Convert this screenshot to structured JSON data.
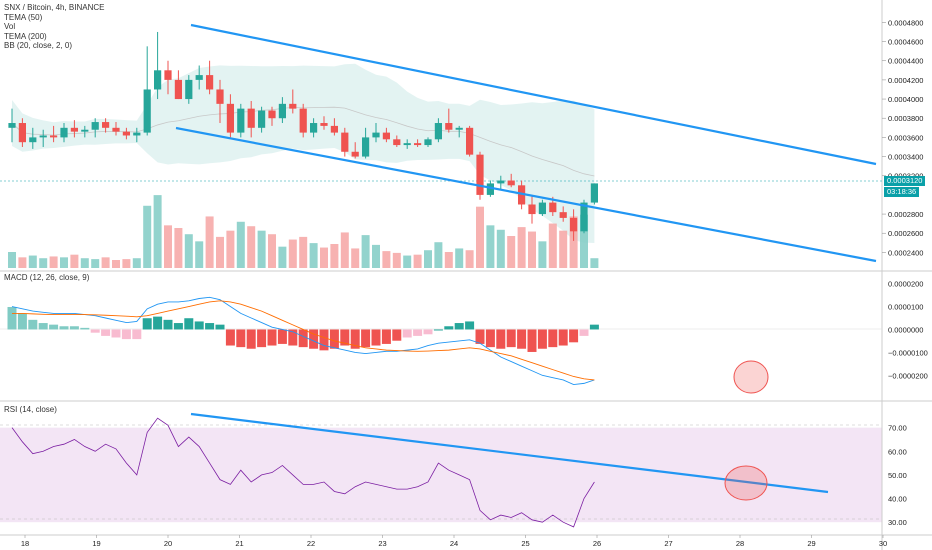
{
  "legend": {
    "symbol": "SNX / Bitcoin, 4h, BINANCE",
    "indicators": [
      "TEMA (50)",
      "Vol",
      "TEMA (200)",
      "BB (20, close, 2, 0)"
    ],
    "macd": "MACD (12, 26, close, 9)",
    "rsi": "RSI (14, close)"
  },
  "price_axis": [
    "0.0004800",
    "0.0004600",
    "0.0004400",
    "0.0004200",
    "0.0004000",
    "0.0003800",
    "0.0003600",
    "0.0003400",
    "0.0003200",
    "0.0002800",
    "0.0002600",
    "0.0002400"
  ],
  "current_price": "0.0003120",
  "countdown": "03:18:36",
  "macd_axis": [
    "0.0000200",
    "0.0000100",
    "0.0000000",
    "−0.0000100",
    "−0.0000200"
  ],
  "rsi_axis": [
    "70.00",
    "60.00",
    "50.00",
    "40.00",
    "30.00"
  ],
  "time_axis": [
    "18",
    "19",
    "20",
    "21",
    "22",
    "23",
    "24",
    "25",
    "26",
    "27",
    "28",
    "29",
    "30"
  ],
  "colors": {
    "up": "#26a69a",
    "down": "#ef5350",
    "trendline": "#2196f3",
    "bb_fill": "#e0f2f1",
    "rsi_band": "#f3e5f5",
    "macd_line": "#2196f3",
    "signal_line": "#ff6d00"
  },
  "chart_data": {
    "type": "candlestick",
    "candles": [
      {
        "o": 3.7,
        "h": 3.9,
        "l": 3.55,
        "c": 3.75
      },
      {
        "o": 3.75,
        "h": 3.8,
        "l": 3.5,
        "c": 3.55
      },
      {
        "o": 3.55,
        "h": 3.7,
        "l": 3.48,
        "c": 3.6
      },
      {
        "o": 3.6,
        "h": 3.68,
        "l": 3.5,
        "c": 3.62
      },
      {
        "o": 3.62,
        "h": 3.72,
        "l": 3.55,
        "c": 3.6
      },
      {
        "o": 3.6,
        "h": 3.75,
        "l": 3.55,
        "c": 3.7
      },
      {
        "o": 3.7,
        "h": 3.78,
        "l": 3.6,
        "c": 3.66
      },
      {
        "o": 3.66,
        "h": 3.72,
        "l": 3.6,
        "c": 3.68
      },
      {
        "o": 3.68,
        "h": 3.8,
        "l": 3.6,
        "c": 3.76
      },
      {
        "o": 3.76,
        "h": 3.8,
        "l": 3.65,
        "c": 3.7
      },
      {
        "o": 3.7,
        "h": 3.76,
        "l": 3.62,
        "c": 3.66
      },
      {
        "o": 3.66,
        "h": 3.7,
        "l": 3.58,
        "c": 3.62
      },
      {
        "o": 3.62,
        "h": 3.7,
        "l": 3.55,
        "c": 3.65
      },
      {
        "o": 3.65,
        "h": 4.55,
        "l": 3.62,
        "c": 4.1
      },
      {
        "o": 4.1,
        "h": 4.7,
        "l": 4.0,
        "c": 4.3
      },
      {
        "o": 4.3,
        "h": 4.4,
        "l": 4.05,
        "c": 4.2
      },
      {
        "o": 4.2,
        "h": 4.3,
        "l": 4.0,
        "c": 4.0
      },
      {
        "o": 4.0,
        "h": 4.25,
        "l": 3.95,
        "c": 4.2
      },
      {
        "o": 4.2,
        "h": 4.35,
        "l": 4.1,
        "c": 4.25
      },
      {
        "o": 4.25,
        "h": 4.4,
        "l": 4.05,
        "c": 4.1
      },
      {
        "o": 4.1,
        "h": 4.2,
        "l": 3.75,
        "c": 3.95
      },
      {
        "o": 3.95,
        "h": 4.05,
        "l": 3.6,
        "c": 3.65
      },
      {
        "o": 3.65,
        "h": 3.95,
        "l": 3.6,
        "c": 3.9
      },
      {
        "o": 3.9,
        "h": 3.98,
        "l": 3.6,
        "c": 3.7
      },
      {
        "o": 3.7,
        "h": 3.92,
        "l": 3.65,
        "c": 3.88
      },
      {
        "o": 3.88,
        "h": 3.92,
        "l": 3.72,
        "c": 3.8
      },
      {
        "o": 3.8,
        "h": 4.02,
        "l": 3.75,
        "c": 3.95
      },
      {
        "o": 3.95,
        "h": 4.1,
        "l": 3.85,
        "c": 3.9
      },
      {
        "o": 3.9,
        "h": 3.95,
        "l": 3.6,
        "c": 3.65
      },
      {
        "o": 3.65,
        "h": 3.8,
        "l": 3.6,
        "c": 3.75
      },
      {
        "o": 3.75,
        "h": 3.82,
        "l": 3.68,
        "c": 3.72
      },
      {
        "o": 3.72,
        "h": 3.8,
        "l": 3.62,
        "c": 3.65
      },
      {
        "o": 3.65,
        "h": 3.7,
        "l": 3.4,
        "c": 3.45
      },
      {
        "o": 3.45,
        "h": 3.55,
        "l": 3.38,
        "c": 3.4
      },
      {
        "o": 3.4,
        "h": 3.7,
        "l": 3.38,
        "c": 3.6
      },
      {
        "o": 3.6,
        "h": 3.75,
        "l": 3.55,
        "c": 3.65
      },
      {
        "o": 3.65,
        "h": 3.7,
        "l": 3.55,
        "c": 3.58
      },
      {
        "o": 3.58,
        "h": 3.62,
        "l": 3.5,
        "c": 3.52
      },
      {
        "o": 3.52,
        "h": 3.58,
        "l": 3.48,
        "c": 3.54
      },
      {
        "o": 3.54,
        "h": 3.58,
        "l": 3.5,
        "c": 3.52
      },
      {
        "o": 3.52,
        "h": 3.6,
        "l": 3.5,
        "c": 3.58
      },
      {
        "o": 3.58,
        "h": 3.8,
        "l": 3.55,
        "c": 3.75
      },
      {
        "o": 3.75,
        "h": 3.9,
        "l": 3.65,
        "c": 3.68
      },
      {
        "o": 3.68,
        "h": 3.72,
        "l": 3.6,
        "c": 3.7
      },
      {
        "o": 3.7,
        "h": 3.72,
        "l": 3.4,
        "c": 3.42
      },
      {
        "o": 3.42,
        "h": 3.45,
        "l": 2.95,
        "c": 3.0
      },
      {
        "o": 3.0,
        "h": 3.15,
        "l": 2.98,
        "c": 3.12
      },
      {
        "o": 3.12,
        "h": 3.2,
        "l": 3.05,
        "c": 3.15
      },
      {
        "o": 3.15,
        "h": 3.22,
        "l": 3.08,
        "c": 3.1
      },
      {
        "o": 3.1,
        "h": 3.15,
        "l": 2.85,
        "c": 2.9
      },
      {
        "o": 2.9,
        "h": 3.0,
        "l": 2.7,
        "c": 2.8
      },
      {
        "o": 2.8,
        "h": 2.95,
        "l": 2.78,
        "c": 2.92
      },
      {
        "o": 2.92,
        "h": 2.98,
        "l": 2.78,
        "c": 2.82
      },
      {
        "o": 2.82,
        "h": 2.88,
        "l": 2.72,
        "c": 2.76
      },
      {
        "o": 2.76,
        "h": 2.85,
        "l": 2.52,
        "c": 2.62
      },
      {
        "o": 2.62,
        "h": 2.95,
        "l": 2.6,
        "c": 2.92
      },
      {
        "o": 2.92,
        "h": 3.12,
        "l": 2.9,
        "c": 3.12
      }
    ],
    "volumes": [
      18,
      12,
      14,
      11,
      13,
      12,
      15,
      11,
      10,
      12,
      9,
      10,
      11,
      70,
      82,
      48,
      45,
      38,
      30,
      58,
      35,
      42,
      52,
      47,
      42,
      38,
      24,
      32,
      35,
      28,
      23,
      27,
      40,
      22,
      37,
      26,
      19,
      17,
      14,
      15,
      20,
      29,
      18,
      22,
      20,
      69,
      48,
      43,
      36,
      46,
      41,
      30,
      50,
      42,
      58,
      60,
      11
    ],
    "macd_hist": [
      0.7,
      0.5,
      0.3,
      0.2,
      0.15,
      0.1,
      0.1,
      0.05,
      -0.1,
      -0.2,
      -0.25,
      -0.3,
      -0.3,
      0.35,
      0.4,
      0.3,
      0.2,
      0.35,
      0.25,
      0.2,
      0.15,
      -0.5,
      -0.55,
      -0.6,
      -0.55,
      -0.5,
      -0.45,
      -0.5,
      -0.55,
      -0.6,
      -0.65,
      -0.6,
      -0.5,
      -0.6,
      -0.55,
      -0.5,
      -0.45,
      -0.35,
      -0.25,
      -0.2,
      -0.15,
      0.0,
      0.1,
      0.2,
      0.25,
      -0.45,
      -0.55,
      -0.6,
      -0.55,
      -0.6,
      -0.7,
      -0.6,
      -0.55,
      -0.5,
      -0.4,
      -0.2,
      0.15
    ],
    "macd_line": [
      1.0,
      0.9,
      0.8,
      0.75,
      0.7,
      0.7,
      0.7,
      0.65,
      0.6,
      0.5,
      0.4,
      0.3,
      0.35,
      0.9,
      1.1,
      1.2,
      1.2,
      1.25,
      1.35,
      1.4,
      1.3,
      1.0,
      0.7,
      0.5,
      0.3,
      0.1,
      0.0,
      -0.1,
      -0.3,
      -0.5,
      -0.7,
      -0.8,
      -0.9,
      -1.0,
      -1.05,
      -1.0,
      -0.95,
      -0.95,
      -0.9,
      -0.85,
      -0.7,
      -0.6,
      -0.55,
      -0.5,
      -0.45,
      -0.6,
      -0.9,
      -1.2,
      -1.4,
      -1.6,
      -1.8,
      -2.0,
      -2.1,
      -2.2,
      -2.4,
      -2.35,
      -2.2
    ],
    "signal_line": [
      0.7,
      0.7,
      0.68,
      0.66,
      0.65,
      0.65,
      0.65,
      0.65,
      0.64,
      0.62,
      0.6,
      0.58,
      0.55,
      0.6,
      0.7,
      0.8,
      0.9,
      1.0,
      1.1,
      1.2,
      1.25,
      1.2,
      1.1,
      0.95,
      0.8,
      0.6,
      0.4,
      0.2,
      0.0,
      -0.2,
      -0.35,
      -0.5,
      -0.6,
      -0.7,
      -0.8,
      -0.85,
      -0.9,
      -0.92,
      -0.94,
      -0.95,
      -0.94,
      -0.92,
      -0.9,
      -0.85,
      -0.8,
      -0.85,
      -0.95,
      -1.05,
      -1.15,
      -1.3,
      -1.45,
      -1.6,
      -1.75,
      -1.9,
      -2.05,
      -2.15,
      -2.2
    ],
    "rsi": [
      70,
      64,
      59,
      60,
      62,
      63,
      65,
      62,
      60,
      63,
      61,
      55,
      50,
      68,
      74,
      71,
      62,
      66,
      62,
      55,
      48,
      46,
      52,
      47,
      50,
      51,
      54,
      50,
      46,
      46,
      47,
      43,
      42,
      45,
      47,
      46,
      45,
      44,
      44,
      45,
      47,
      55,
      52,
      50,
      48,
      35,
      31,
      33,
      32,
      34,
      31,
      30,
      33,
      30,
      28,
      40,
      47
    ],
    "rsi_range": [
      25,
      80
    ],
    "macd_range": [
      -2.9,
      2.2
    ],
    "price_range": [
      2.3,
      4.95
    ]
  }
}
